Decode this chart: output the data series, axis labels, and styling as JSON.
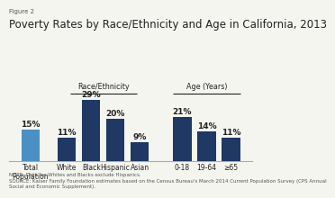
{
  "figure_label": "Figure 2",
  "title": "Poverty Rates by Race/Ethnicity and Age in California, 2013",
  "bars": [
    {
      "label": "Total\nPopulation",
      "value": 15,
      "color": "#4a90c4",
      "group": "total"
    },
    {
      "label": "White",
      "value": 11,
      "color": "#1f3864",
      "group": "race"
    },
    {
      "label": "Black",
      "value": 29,
      "color": "#1f3864",
      "group": "race"
    },
    {
      "label": "Hispanic",
      "value": 20,
      "color": "#1f3864",
      "group": "race"
    },
    {
      "label": "Asian",
      "value": 9,
      "color": "#1f3864",
      "group": "race"
    },
    {
      "label": "0-18",
      "value": 21,
      "color": "#1f3864",
      "group": "age"
    },
    {
      "label": "19-64",
      "value": 14,
      "color": "#1f3864",
      "group": "age"
    },
    {
      "label": "≥65",
      "value": 11,
      "color": "#1f3864",
      "group": "age"
    }
  ],
  "race_group_label": "Race/Ethnicity",
  "age_group_label": "Age (Years)",
  "note_text": "NOTE: Data for Whites and Blacks exclude Hispanics.\nSOURCE: Kaiser Family Foundation estimates based on the Census Bureau's March 2014 Current Population Survey (CPS Annual\nSocial and Economic Supplement).",
  "background_color": "#f5f5f0",
  "bar_width": 0.6,
  "ylim": [
    0,
    35
  ],
  "value_fontsize": 6.5,
  "label_fontsize": 5.5,
  "title_fontsize": 8.5,
  "note_fontsize": 4.0,
  "x_positions": [
    0,
    1.2,
    2.0,
    2.8,
    3.6,
    5.0,
    5.8,
    6.6
  ],
  "xlim": [
    -0.7,
    7.3
  ]
}
